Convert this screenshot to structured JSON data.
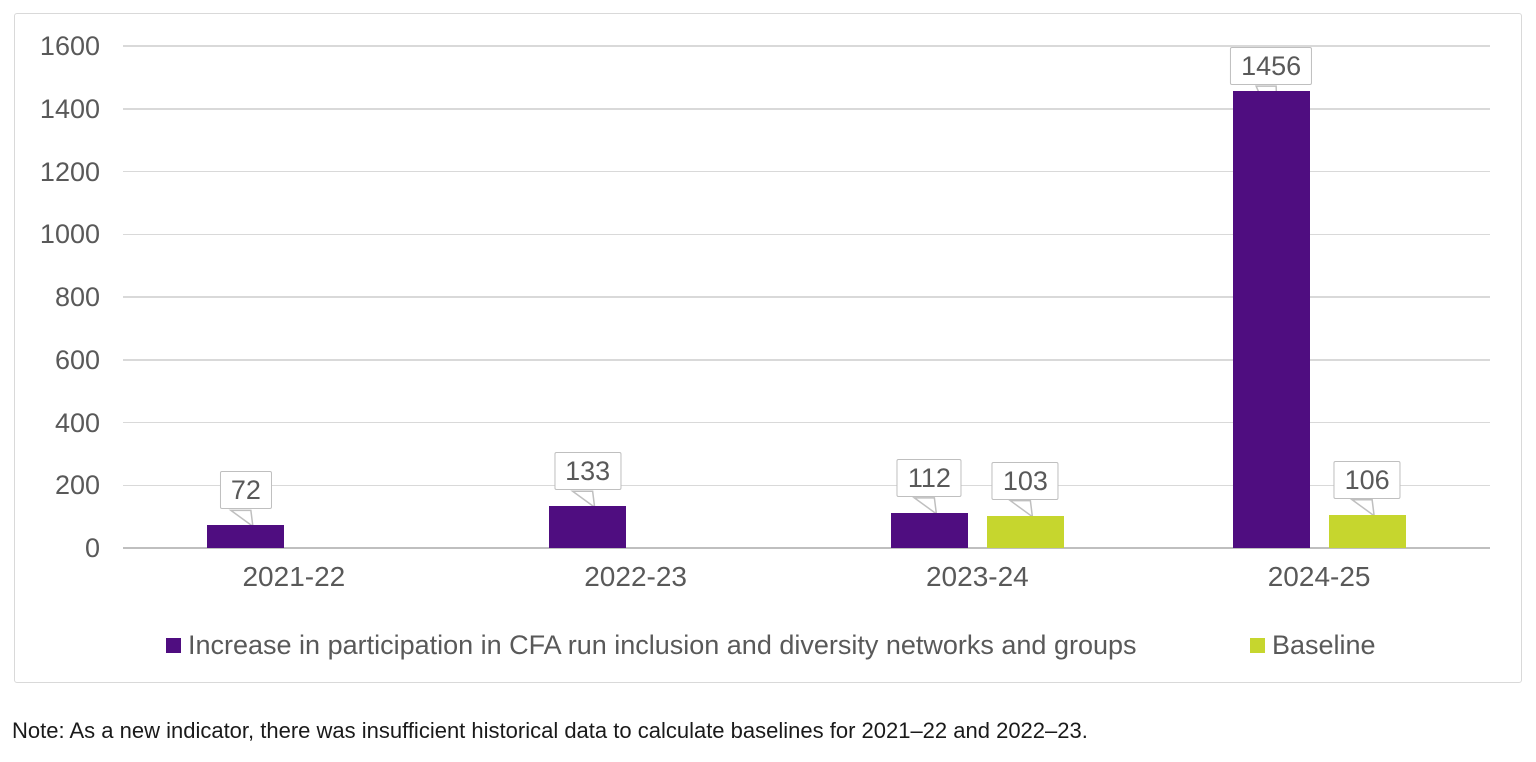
{
  "chart_data": {
    "type": "bar",
    "title": "",
    "categories": [
      "2021-22",
      "2022-23",
      "2023-24",
      "2024-25"
    ],
    "series": [
      {
        "name": "Increase in participation in CFA run inclusion and diversity networks and groups",
        "color": "#4f0d80",
        "values": [
          72,
          133,
          112,
          1456
        ]
      },
      {
        "name": "Baseline",
        "color": "#c6d62e",
        "values": [
          null,
          null,
          103,
          106
        ]
      }
    ],
    "xlabel": "",
    "ylabel": "",
    "ylim": [
      0,
      1600
    ],
    "yticks": [
      0,
      200,
      400,
      600,
      800,
      1000,
      1200,
      1400,
      1600
    ],
    "grid": "horizontal",
    "legend_position": "bottom",
    "data_label_style": "callout"
  },
  "note": "Note: As a new indicator, there was insufficient historical data to calculate baselines for 2021–22 and 2022–23.",
  "colors": {
    "gridline": "#d9d9d9",
    "baseline": "#bfbfbf",
    "axis_text": "#595959",
    "frame_border": "#d9d9d9",
    "callout_border": "#bfbfbf",
    "callout_text": "#595959",
    "background": "#ffffff"
  }
}
